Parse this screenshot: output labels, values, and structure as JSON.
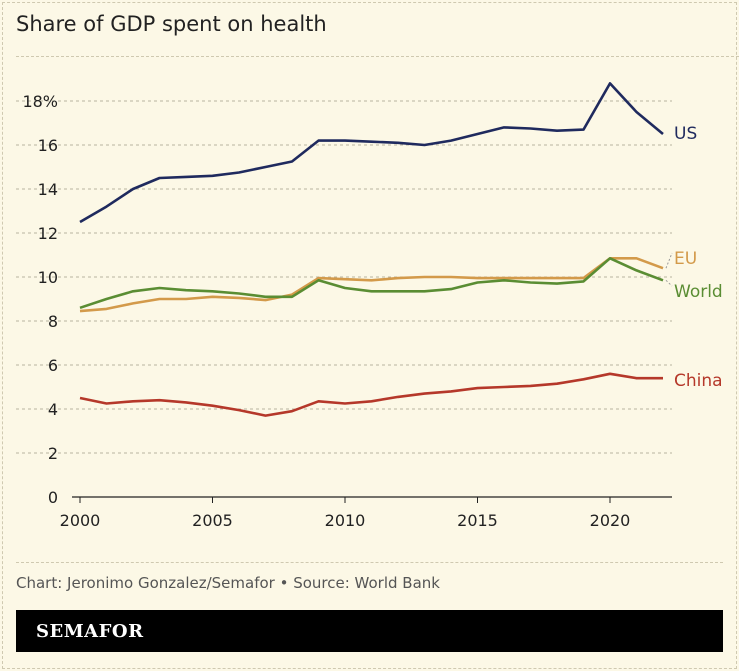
{
  "chart_data": {
    "type": "line",
    "title": "Share of GDP spent on health",
    "x": [
      2000,
      2001,
      2002,
      2003,
      2004,
      2005,
      2006,
      2007,
      2008,
      2009,
      2010,
      2011,
      2012,
      2013,
      2014,
      2015,
      2016,
      2017,
      2018,
      2019,
      2020,
      2021,
      2022
    ],
    "xticks": [
      "2000",
      "2005",
      "2010",
      "2015",
      "2020"
    ],
    "yticks": [
      "0",
      "2",
      "4",
      "6",
      "8",
      "10",
      "12",
      "14",
      "16",
      "18%"
    ],
    "ylim": [
      0,
      18
    ],
    "grid": true,
    "legend": "inline-labels-right",
    "series": [
      {
        "name": "US",
        "color": "#1f2a5e",
        "values": [
          12.5,
          13.2,
          14.0,
          14.5,
          14.55,
          14.6,
          14.75,
          15.0,
          15.25,
          16.2,
          16.2,
          16.15,
          16.1,
          16.0,
          16.2,
          16.5,
          16.8,
          16.75,
          16.65,
          16.7,
          18.8,
          17.5,
          16.5
        ]
      },
      {
        "name": "EU",
        "color": "#d39a4a",
        "values": [
          8.45,
          8.55,
          8.8,
          9.0,
          9.0,
          9.1,
          9.05,
          8.95,
          9.2,
          9.95,
          9.9,
          9.85,
          9.95,
          10.0,
          10.0,
          9.95,
          9.95,
          9.95,
          9.95,
          9.95,
          10.85,
          10.85,
          10.4
        ]
      },
      {
        "name": "World",
        "color": "#5a8d33",
        "values": [
          8.6,
          9.0,
          9.35,
          9.5,
          9.4,
          9.35,
          9.25,
          9.1,
          9.1,
          9.85,
          9.5,
          9.35,
          9.35,
          9.35,
          9.45,
          9.75,
          9.85,
          9.75,
          9.7,
          9.8,
          10.85,
          10.3,
          9.85
        ]
      },
      {
        "name": "China",
        "color": "#b5382a",
        "values": [
          4.5,
          4.25,
          4.35,
          4.4,
          4.3,
          4.15,
          3.95,
          3.7,
          3.9,
          4.35,
          4.25,
          4.35,
          4.55,
          4.7,
          4.8,
          4.95,
          5.0,
          5.05,
          5.15,
          5.35,
          5.6,
          5.4,
          5.4
        ]
      }
    ]
  },
  "footer": {
    "source": "Chart: Jeronimo Gonzalez/Semafor • Source: World Bank",
    "brand": "SEMAFOR"
  }
}
